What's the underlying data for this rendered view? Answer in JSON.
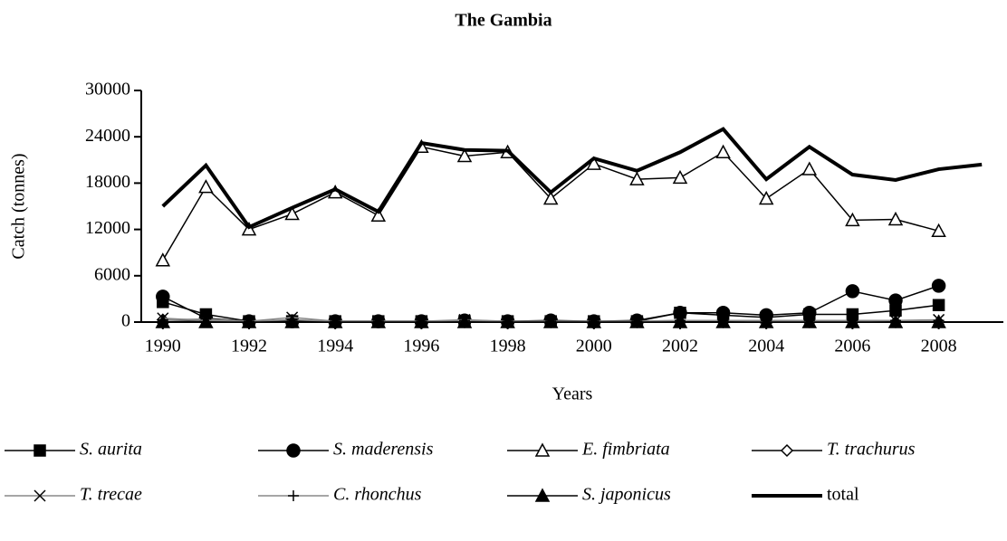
{
  "chart_data": {
    "type": "line",
    "title": "The Gambia",
    "x_label": "Years",
    "y_label": "Catch (tonnes)",
    "x": [
      1990,
      1991,
      1992,
      1993,
      1994,
      1995,
      1996,
      1997,
      1998,
      1999,
      2000,
      2001,
      2002,
      2003,
      2004,
      2005,
      2006,
      2007,
      2008,
      2009
    ],
    "xlim": [
      1989.5,
      2009.5
    ],
    "xticks": [
      1990,
      1992,
      1994,
      1996,
      1998,
      2000,
      2002,
      2004,
      2006,
      2008
    ],
    "ylim": [
      0,
      30000
    ],
    "yticks": [
      0,
      6000,
      12000,
      18000,
      24000,
      30000
    ],
    "series": [
      {
        "name": "S. aurita",
        "color": "#000",
        "marker": "square",
        "italic": true,
        "values": [
          2600,
          1000,
          100,
          100,
          100,
          100,
          100,
          100,
          100,
          100,
          100,
          100,
          1200,
          900,
          600,
          1000,
          1000,
          1500,
          2200,
          null
        ]
      },
      {
        "name": "S. maderensis",
        "color": "#000",
        "marker": "circle",
        "italic": true,
        "values": [
          3300,
          500,
          100,
          100,
          100,
          100,
          100,
          200,
          100,
          200,
          100,
          200,
          1200,
          1200,
          900,
          1200,
          4000,
          2800,
          4700,
          null
        ]
      },
      {
        "name": "E. fimbriata",
        "color": "#000",
        "marker": "triangle-open",
        "italic": true,
        "values": [
          8000,
          17500,
          12000,
          14000,
          16800,
          13800,
          22700,
          21500,
          22000,
          16000,
          20500,
          18500,
          18700,
          22000,
          16000,
          19800,
          13200,
          13300,
          11800,
          null
        ]
      },
      {
        "name": "T. trachurus",
        "color": "#000",
        "marker": "diamond-open",
        "italic": true,
        "values": [
          300,
          200,
          0,
          100,
          0,
          0,
          0,
          0,
          0,
          0,
          0,
          0,
          0,
          0,
          0,
          0,
          0,
          0,
          0,
          null
        ]
      },
      {
        "name": "T. trecae",
        "color": "#888",
        "marker": "x",
        "italic": true,
        "values": [
          500,
          200,
          100,
          600,
          100,
          100,
          100,
          300,
          100,
          100,
          100,
          100,
          200,
          200,
          100,
          100,
          100,
          200,
          300,
          null
        ]
      },
      {
        "name": "C. rhonchus",
        "color": "#888",
        "marker": "plus",
        "italic": true,
        "values": [
          300,
          400,
          100,
          300,
          100,
          100,
          100,
          200,
          100,
          100,
          100,
          100,
          200,
          200,
          200,
          200,
          200,
          200,
          200,
          null
        ]
      },
      {
        "name": "S. japonicus",
        "color": "#000",
        "marker": "triangle",
        "italic": true,
        "values": [
          0,
          0,
          0,
          0,
          0,
          0,
          0,
          0,
          0,
          0,
          0,
          0,
          0,
          0,
          0,
          0,
          0,
          0,
          0,
          null
        ]
      },
      {
        "name": "total",
        "color": "#000",
        "marker": "none",
        "width": 4,
        "italic": false,
        "values": [
          15000,
          20300,
          12300,
          14800,
          17200,
          14300,
          23200,
          22300,
          22200,
          16800,
          21200,
          19600,
          22000,
          25000,
          18500,
          22700,
          19100,
          18400,
          19800,
          20400
        ]
      }
    ]
  }
}
